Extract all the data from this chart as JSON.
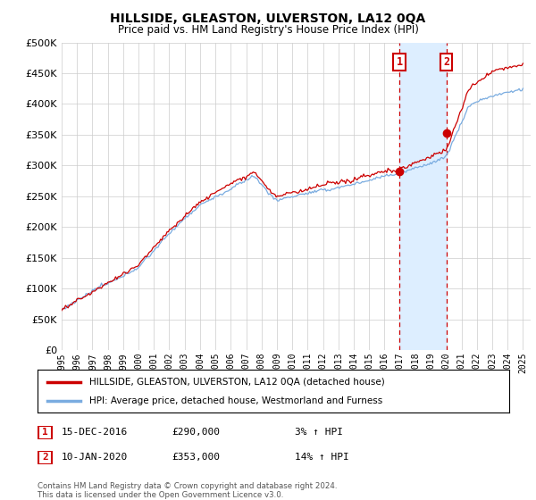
{
  "title": "HILLSIDE, GLEASTON, ULVERSTON, LA12 0QA",
  "subtitle": "Price paid vs. HM Land Registry's House Price Index (HPI)",
  "ylim": [
    0,
    500000
  ],
  "yticks": [
    0,
    50000,
    100000,
    150000,
    200000,
    250000,
    300000,
    350000,
    400000,
    450000,
    500000
  ],
  "sale1_year": 2016.96,
  "sale1_price": 290000,
  "sale1_label": "15-DEC-2016",
  "sale1_pct": "3%",
  "sale2_year": 2020.03,
  "sale2_price": 353000,
  "sale2_label": "10-JAN-2020",
  "sale2_pct": "14%",
  "hpi_line_color": "#7aace0",
  "price_line_color": "#cc0000",
  "shade_color": "#ddeeff",
  "grid_color": "#cccccc",
  "annotation_box_color": "#cc0000",
  "background_color": "#ffffff",
  "legend_label_price": "HILLSIDE, GLEASTON, ULVERSTON, LA12 0QA (detached house)",
  "legend_label_hpi": "HPI: Average price, detached house, Westmorland and Furness",
  "footer": "Contains HM Land Registry data © Crown copyright and database right 2024.\nThis data is licensed under the Open Government Licence v3.0."
}
